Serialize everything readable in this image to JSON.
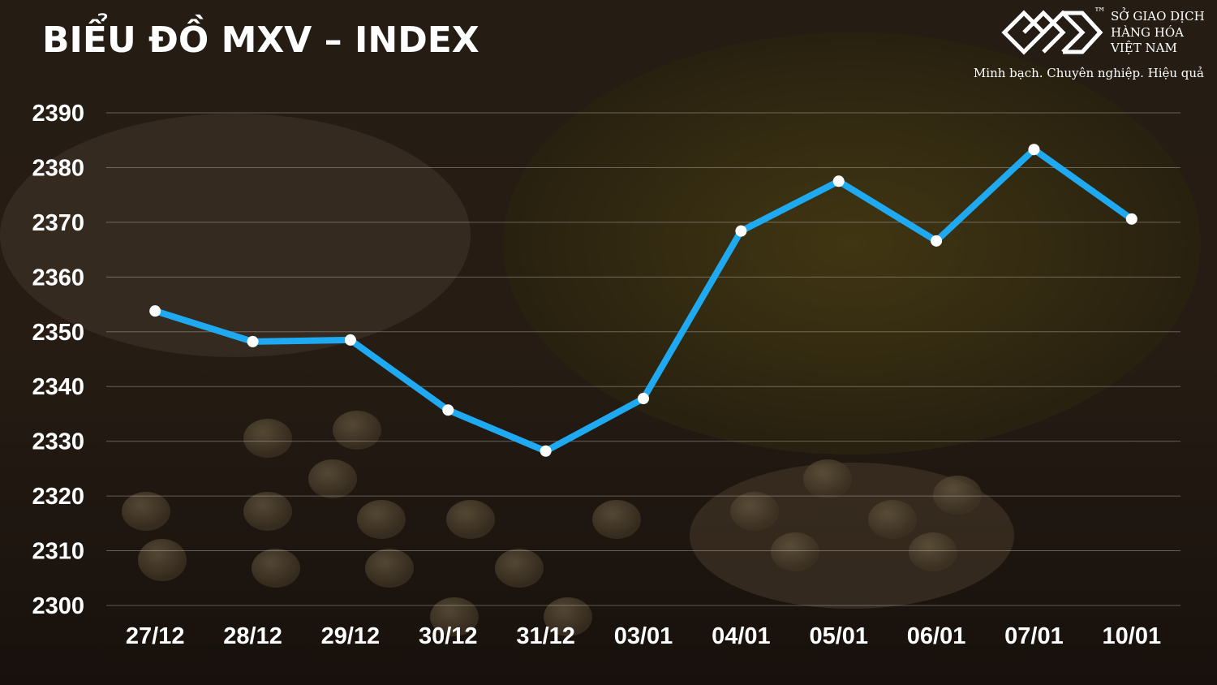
{
  "chart_data": {
    "type": "line",
    "title": "BIỂU ĐỒ MXV – INDEX",
    "categories": [
      "27/12",
      "28/12",
      "29/12",
      "30/12",
      "31/12",
      "03/01",
      "04/01",
      "05/01",
      "06/01",
      "07/01",
      "10/01"
    ],
    "series": [
      {
        "color": "#1fa9f0",
        "marker_color": "#ffffff",
        "values": [
          2353.8,
          2348.2,
          2348.5,
          2335.7,
          2328.2,
          2337.8,
          2368.4,
          2377.5,
          2366.6,
          2383.3,
          2370.6
        ]
      }
    ],
    "ylim": [
      2300,
      2390
    ],
    "yticks": [
      2300,
      2310,
      2320,
      2330,
      2340,
      2350,
      2360,
      2370,
      2380,
      2390
    ],
    "grid": true
  },
  "logo": {
    "line1": "SỞ GIAO DỊCH",
    "line2": "HÀNG HÓA",
    "line3": "VIỆT NAM",
    "trademark": "™",
    "slogan": "Minh bạch. Chuyên nghiệp. Hiệu quả"
  }
}
